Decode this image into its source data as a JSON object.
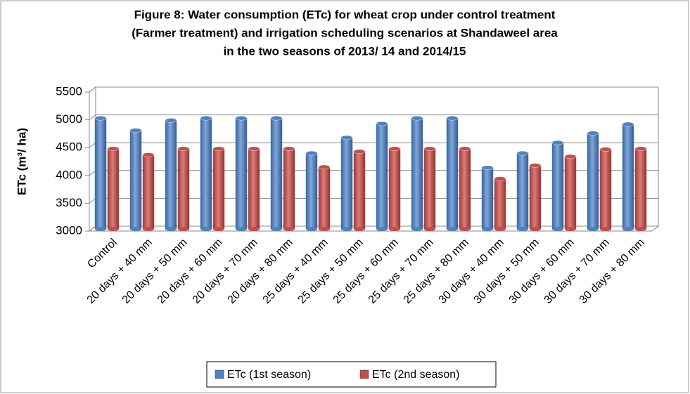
{
  "chart_data": {
    "type": "bar",
    "title": [
      "Figure 8: Water consumption (ETc) for wheat crop under control treatment",
      "(Farmer treatment) and irrigation scheduling scenarios at Shandaweel area",
      "in the two seasons of 2013/ 14 and 2014/15"
    ],
    "y_label": "ETc (m³/ ha)",
    "categories": [
      "Control",
      "20 days + 40 mm",
      "20 days + 50 mm",
      "20 days + 60 mm",
      "20 days + 70 mm",
      "20 days + 80 mm",
      "25 days + 40 mm",
      "25 days + 50 mm",
      "25 days + 60 mm",
      "25 days + 70 mm",
      "25 days + 80 mm",
      "30 days + 40 mm",
      "30 days + 50 mm",
      "30 days + 60 mm",
      "30 days + 70 mm",
      "30 days + 80 mm"
    ],
    "series": [
      {
        "name": "ETc (1st season)",
        "color": "#4f81bd",
        "values": [
          5030,
          4810,
          4990,
          5030,
          5030,
          5030,
          4400,
          4680,
          4930,
          5030,
          5030,
          4140,
          4400,
          4590,
          4760,
          4920
        ]
      },
      {
        "name": "ETc (2nd season)",
        "color": "#c0504d",
        "values": [
          4480,
          4370,
          4480,
          4480,
          4480,
          4480,
          4150,
          4430,
          4480,
          4480,
          4480,
          3940,
          4180,
          4340,
          4470,
          4480
        ]
      }
    ],
    "ylim": [
      3000,
      5500
    ],
    "yticks": [
      3000,
      3500,
      4000,
      4500,
      5000,
      5500
    ],
    "grid": true,
    "legend": "bottom"
  }
}
